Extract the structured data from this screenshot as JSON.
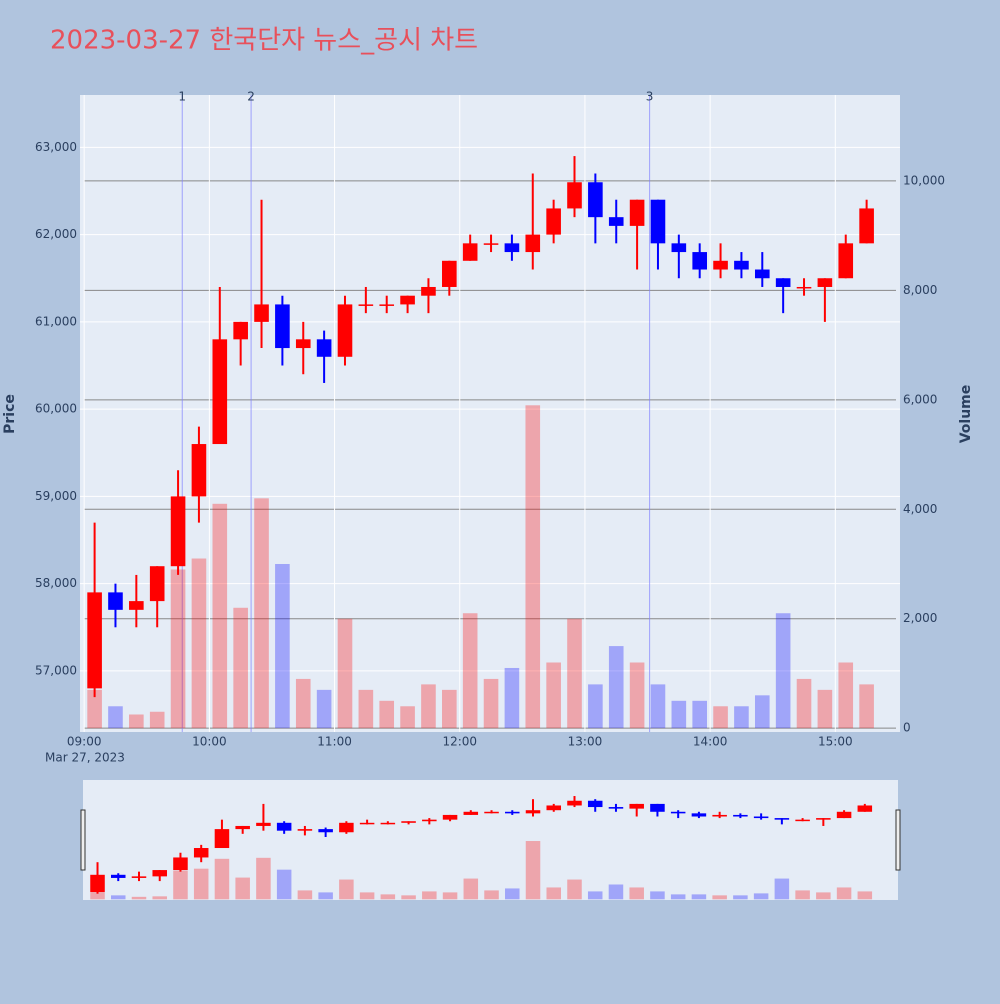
{
  "chart_data": {
    "type": "candlestick",
    "title": "2023-03-27 한국단자 뉴스_공시 차트",
    "y_label": "Price",
    "y2_label": "Volume",
    "x_date_label": "Mar 27, 2023",
    "x": [
      "09:00",
      "09:10",
      "09:20",
      "09:30",
      "09:40",
      "09:50",
      "10:00",
      "10:10",
      "10:20",
      "10:30",
      "10:40",
      "10:50",
      "11:00",
      "11:10",
      "11:20",
      "11:30",
      "11:40",
      "11:50",
      "12:00",
      "12:10",
      "12:20",
      "12:30",
      "12:40",
      "12:50",
      "13:00",
      "13:10",
      "13:20",
      "13:30",
      "13:40",
      "13:50",
      "14:00",
      "14:10",
      "14:20",
      "14:30",
      "14:40",
      "14:50",
      "15:00",
      "15:10"
    ],
    "open": [
      56800,
      57900,
      57700,
      57800,
      58200,
      59000,
      59600,
      60800,
      61000,
      61200,
      60700,
      60800,
      60600,
      61200,
      61200,
      61200,
      61300,
      61400,
      61700,
      61900,
      61900,
      61800,
      62000,
      62300,
      62600,
      62200,
      62100,
      62400,
      61900,
      61800,
      61600,
      61700,
      61600,
      61500,
      61400,
      61400,
      61500,
      61900
    ],
    "high": [
      58700,
      58000,
      58100,
      58200,
      59300,
      59800,
      61400,
      61000,
      62400,
      61300,
      61000,
      60900,
      61300,
      61400,
      61300,
      61300,
      61500,
      61700,
      62000,
      62000,
      62000,
      62700,
      62400,
      62900,
      62700,
      62400,
      62400,
      62400,
      62000,
      61900,
      61900,
      61800,
      61800,
      61500,
      61500,
      61500,
      62000,
      62400
    ],
    "low": [
      56700,
      57500,
      57500,
      57500,
      58100,
      58700,
      59600,
      60500,
      60700,
      60500,
      60400,
      60300,
      60500,
      61100,
      61100,
      61100,
      61100,
      61300,
      61700,
      61800,
      61700,
      61600,
      61900,
      62200,
      61900,
      61900,
      61600,
      61600,
      61500,
      61500,
      61500,
      61500,
      61400,
      61100,
      61300,
      61000,
      61500,
      61900
    ],
    "close": [
      57900,
      57700,
      57800,
      58200,
      59000,
      59600,
      60800,
      61000,
      61200,
      60700,
      60800,
      60600,
      61200,
      61200,
      61200,
      61300,
      61400,
      61700,
      61900,
      61900,
      61800,
      62000,
      62300,
      62600,
      62200,
      62100,
      62400,
      61900,
      61800,
      61600,
      61700,
      61600,
      61500,
      61400,
      61400,
      61500,
      61900,
      62300
    ],
    "volume": [
      700,
      400,
      250,
      300,
      2900,
      3100,
      4100,
      2200,
      4200,
      3000,
      900,
      700,
      2000,
      700,
      500,
      400,
      800,
      700,
      2100,
      900,
      1100,
      5900,
      1200,
      2000,
      800,
      1500,
      1200,
      800,
      500,
      500,
      400,
      400,
      600,
      2100,
      900,
      700,
      1200,
      800
    ],
    "increasing_color": "#ff0000",
    "decreasing_color": "#0000ff",
    "xlim": [
      "08:58",
      "15:31"
    ],
    "xticks": [
      "09:00",
      "10:00",
      "11:00",
      "12:00",
      "13:00",
      "14:00",
      "15:00"
    ],
    "ylim": [
      56300,
      63600
    ],
    "yticks": [
      {
        "value": 57000,
        "label": "57,000"
      },
      {
        "value": 58000,
        "label": "58,000"
      },
      {
        "value": 59000,
        "label": "59,000"
      },
      {
        "value": 60000,
        "label": "60,000"
      },
      {
        "value": 61000,
        "label": "61,000"
      },
      {
        "value": 62000,
        "label": "62,000"
      },
      {
        "value": 63000,
        "label": "63,000"
      }
    ],
    "y2lim": [
      -70,
      11570
    ],
    "y2ticks": [
      0,
      {
        "value": 2000,
        "label": "2,000"
      },
      {
        "value": 4000,
        "label": "4,000"
      },
      {
        "value": 6000,
        "label": "6,000"
      },
      {
        "value": 8000,
        "label": "8,000"
      },
      {
        "value": 10000,
        "label": "10,000"
      }
    ],
    "annotations": [
      {
        "x": "09:47",
        "label": "1"
      },
      {
        "x": "10:20",
        "label": "2"
      },
      {
        "x": "13:31",
        "label": "3"
      }
    ]
  }
}
